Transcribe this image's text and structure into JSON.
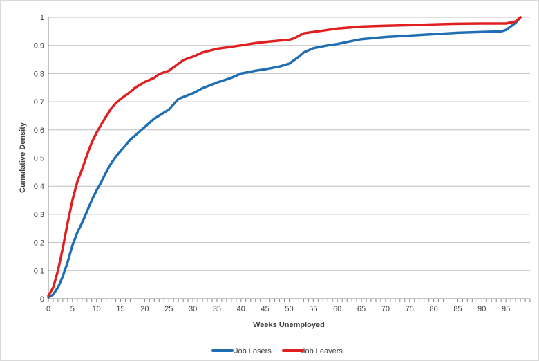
{
  "chart_data": {
    "type": "line",
    "title": "",
    "xlabel": "Weeks Unemployed",
    "ylabel": "Cumulative Density",
    "xlim": [
      0,
      100
    ],
    "ylim": [
      0,
      1
    ],
    "x_ticks": [
      0,
      5,
      10,
      15,
      20,
      25,
      30,
      35,
      40,
      45,
      50,
      55,
      60,
      65,
      70,
      75,
      80,
      85,
      90,
      95
    ],
    "y_ticks": [
      0,
      0.1,
      0.2,
      0.3,
      0.4,
      0.5,
      0.6,
      0.7,
      0.8,
      0.9,
      1
    ],
    "grid": "horizontal",
    "legend_position": "bottom",
    "series": [
      {
        "name": "Job Losers",
        "color": "#1f6eb4",
        "points": [
          [
            0,
            0.005
          ],
          [
            1,
            0.015
          ],
          [
            2,
            0.04
          ],
          [
            3,
            0.08
          ],
          [
            4,
            0.13
          ],
          [
            5,
            0.19
          ],
          [
            6,
            0.235
          ],
          [
            7,
            0.27
          ],
          [
            8,
            0.31
          ],
          [
            9,
            0.35
          ],
          [
            10,
            0.385
          ],
          [
            11,
            0.415
          ],
          [
            12,
            0.45
          ],
          [
            13,
            0.48
          ],
          [
            14,
            0.505
          ],
          [
            15,
            0.525
          ],
          [
            16,
            0.545
          ],
          [
            17,
            0.565
          ],
          [
            18,
            0.58
          ],
          [
            19,
            0.595
          ],
          [
            20,
            0.61
          ],
          [
            22,
            0.64
          ],
          [
            25,
            0.672
          ],
          [
            27,
            0.71
          ],
          [
            30,
            0.73
          ],
          [
            32,
            0.748
          ],
          [
            35,
            0.768
          ],
          [
            38,
            0.785
          ],
          [
            40,
            0.8
          ],
          [
            43,
            0.81
          ],
          [
            45,
            0.815
          ],
          [
            48,
            0.825
          ],
          [
            50,
            0.835
          ],
          [
            52,
            0.86
          ],
          [
            53,
            0.875
          ],
          [
            55,
            0.89
          ],
          [
            58,
            0.9
          ],
          [
            60,
            0.905
          ],
          [
            62,
            0.912
          ],
          [
            65,
            0.922
          ],
          [
            70,
            0.93
          ],
          [
            75,
            0.935
          ],
          [
            80,
            0.94
          ],
          [
            85,
            0.945
          ],
          [
            90,
            0.948
          ],
          [
            94,
            0.95
          ],
          [
            95,
            0.955
          ],
          [
            97,
            0.98
          ],
          [
            98,
            1.0
          ]
        ]
      },
      {
        "name": "Job Leavers",
        "color": "#e02020",
        "points": [
          [
            0,
            0.01
          ],
          [
            1,
            0.04
          ],
          [
            2,
            0.1
          ],
          [
            3,
            0.18
          ],
          [
            4,
            0.27
          ],
          [
            5,
            0.35
          ],
          [
            6,
            0.415
          ],
          [
            7,
            0.46
          ],
          [
            8,
            0.51
          ],
          [
            9,
            0.555
          ],
          [
            10,
            0.59
          ],
          [
            11,
            0.62
          ],
          [
            12,
            0.648
          ],
          [
            13,
            0.675
          ],
          [
            14,
            0.695
          ],
          [
            15,
            0.71
          ],
          [
            17,
            0.735
          ],
          [
            18,
            0.75
          ],
          [
            20,
            0.77
          ],
          [
            22,
            0.785
          ],
          [
            23,
            0.798
          ],
          [
            25,
            0.81
          ],
          [
            27,
            0.835
          ],
          [
            28,
            0.848
          ],
          [
            30,
            0.86
          ],
          [
            32,
            0.875
          ],
          [
            35,
            0.888
          ],
          [
            38,
            0.895
          ],
          [
            40,
            0.9
          ],
          [
            43,
            0.908
          ],
          [
            45,
            0.912
          ],
          [
            48,
            0.917
          ],
          [
            50,
            0.92
          ],
          [
            51,
            0.925
          ],
          [
            53,
            0.943
          ],
          [
            55,
            0.948
          ],
          [
            58,
            0.955
          ],
          [
            60,
            0.96
          ],
          [
            65,
            0.967
          ],
          [
            70,
            0.97
          ],
          [
            75,
            0.972
          ],
          [
            80,
            0.975
          ],
          [
            85,
            0.977
          ],
          [
            90,
            0.978
          ],
          [
            95,
            0.978
          ],
          [
            97,
            0.985
          ],
          [
            98,
            1.0
          ]
        ]
      }
    ]
  }
}
